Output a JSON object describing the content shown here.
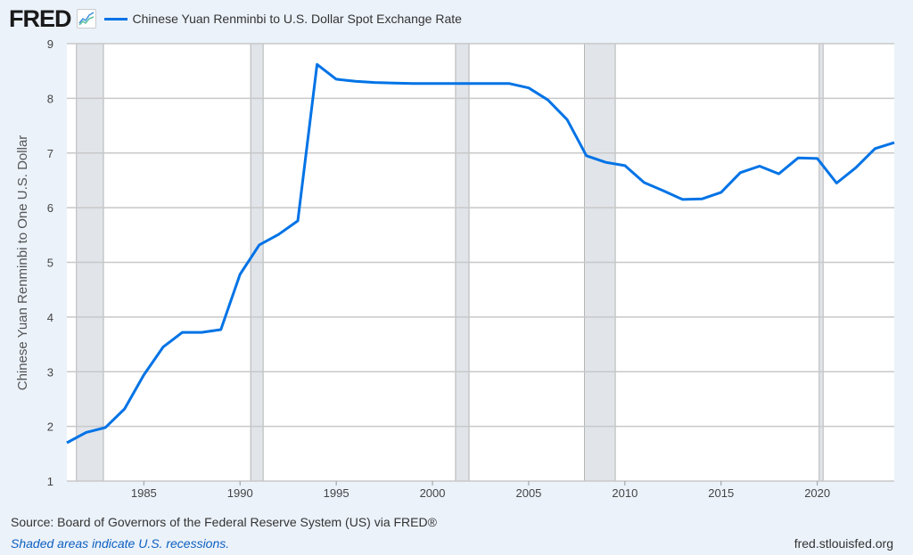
{
  "header": {
    "logo": "FRED",
    "logo_icon": "line-chart-icon"
  },
  "colors": {
    "series": "#0073e6",
    "recession": "#e1e5ea",
    "grid": "#c8c8c8"
  },
  "chart_data": {
    "type": "line",
    "title": "Chinese Yuan Renminbi to U.S. Dollar Spot Exchange Rate",
    "ylabel": "Chinese Yuan Renminbi to One U.S. Dollar",
    "xlabel": "",
    "ylim": [
      1,
      9
    ],
    "xlim": [
      1981,
      2024
    ],
    "yticks": [
      "1",
      "2",
      "3",
      "4",
      "5",
      "6",
      "7",
      "8",
      "9"
    ],
    "xticks": [
      "1985",
      "1990",
      "1995",
      "2000",
      "2005",
      "2010",
      "2015",
      "2020"
    ],
    "grid": true,
    "legend": "top-left",
    "series": [
      {
        "name": "Chinese Yuan Renminbi to U.S. Dollar Spot Exchange Rate",
        "x": [
          1981,
          1982,
          1983,
          1984,
          1985,
          1986,
          1987,
          1988,
          1989,
          1990,
          1991,
          1992,
          1993,
          1994,
          1995,
          1996,
          1997,
          1998,
          1999,
          2000,
          2001,
          2002,
          2003,
          2004,
          2005,
          2006,
          2007,
          2008,
          2009,
          2010,
          2011,
          2012,
          2013,
          2014,
          2015,
          2016,
          2017,
          2018,
          2019,
          2020,
          2021,
          2022,
          2023,
          2024
        ],
        "values": [
          1.7,
          1.89,
          1.98,
          2.32,
          2.94,
          3.45,
          3.72,
          3.72,
          3.77,
          4.78,
          5.32,
          5.51,
          5.76,
          8.62,
          8.35,
          8.31,
          8.29,
          8.28,
          8.27,
          8.27,
          8.27,
          8.27,
          8.27,
          8.27,
          8.19,
          7.97,
          7.61,
          6.95,
          6.83,
          6.77,
          6.46,
          6.31,
          6.15,
          6.16,
          6.28,
          6.64,
          6.76,
          6.62,
          6.91,
          6.9,
          6.45,
          6.73,
          7.08,
          7.19
        ]
      }
    ],
    "recessions": [
      [
        1981.5,
        1982.9
      ],
      [
        1990.55,
        1991.2
      ],
      [
        2001.2,
        2001.9
      ],
      [
        2007.9,
        2009.5
      ],
      [
        2020.1,
        2020.3
      ]
    ]
  },
  "footer": {
    "source": "Source: Board of Governors of the Federal Reserve System (US) via FRED®",
    "recession_note": "Shaded areas indicate U.S. recessions.",
    "url": "fred.stlouisfed.org"
  }
}
